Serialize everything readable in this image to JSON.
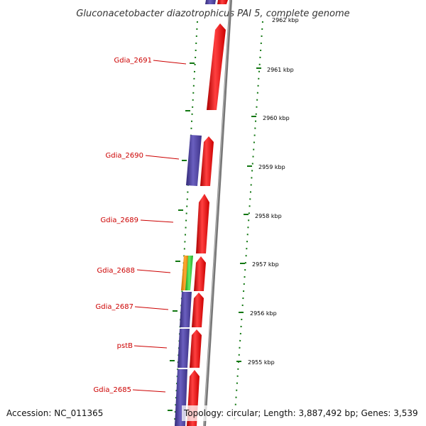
{
  "title": "Gluconacetobacter diazotrophicus PAI 5, complete genome",
  "footer": {
    "accession": "Accession: NC_011365",
    "topology": "Topology: circular; Length: 3,887,492 bp; Genes: 3,539"
  },
  "colors": {
    "forward_gene": "#ee0000",
    "reverse_gene": "#4a3f9a",
    "rrna_orange": "#f08c00",
    "rrna_green": "#33cc33",
    "backbone": "#888888",
    "gc_tick": "#117711",
    "label": "#cc0000"
  },
  "gene_labels": [
    "Gdia_2691",
    "Gdia_2690",
    "Gdia_2689",
    "Gdia_2688",
    "Gdia_2687",
    "pstB",
    "Gdia_2685"
  ],
  "kbp_labels": [
    "2962 kbp",
    "2961 kbp",
    "2960 kbp",
    "2959 kbp",
    "2958 kbp",
    "2957 kbp",
    "2956 kbp",
    "2955 kbp"
  ]
}
